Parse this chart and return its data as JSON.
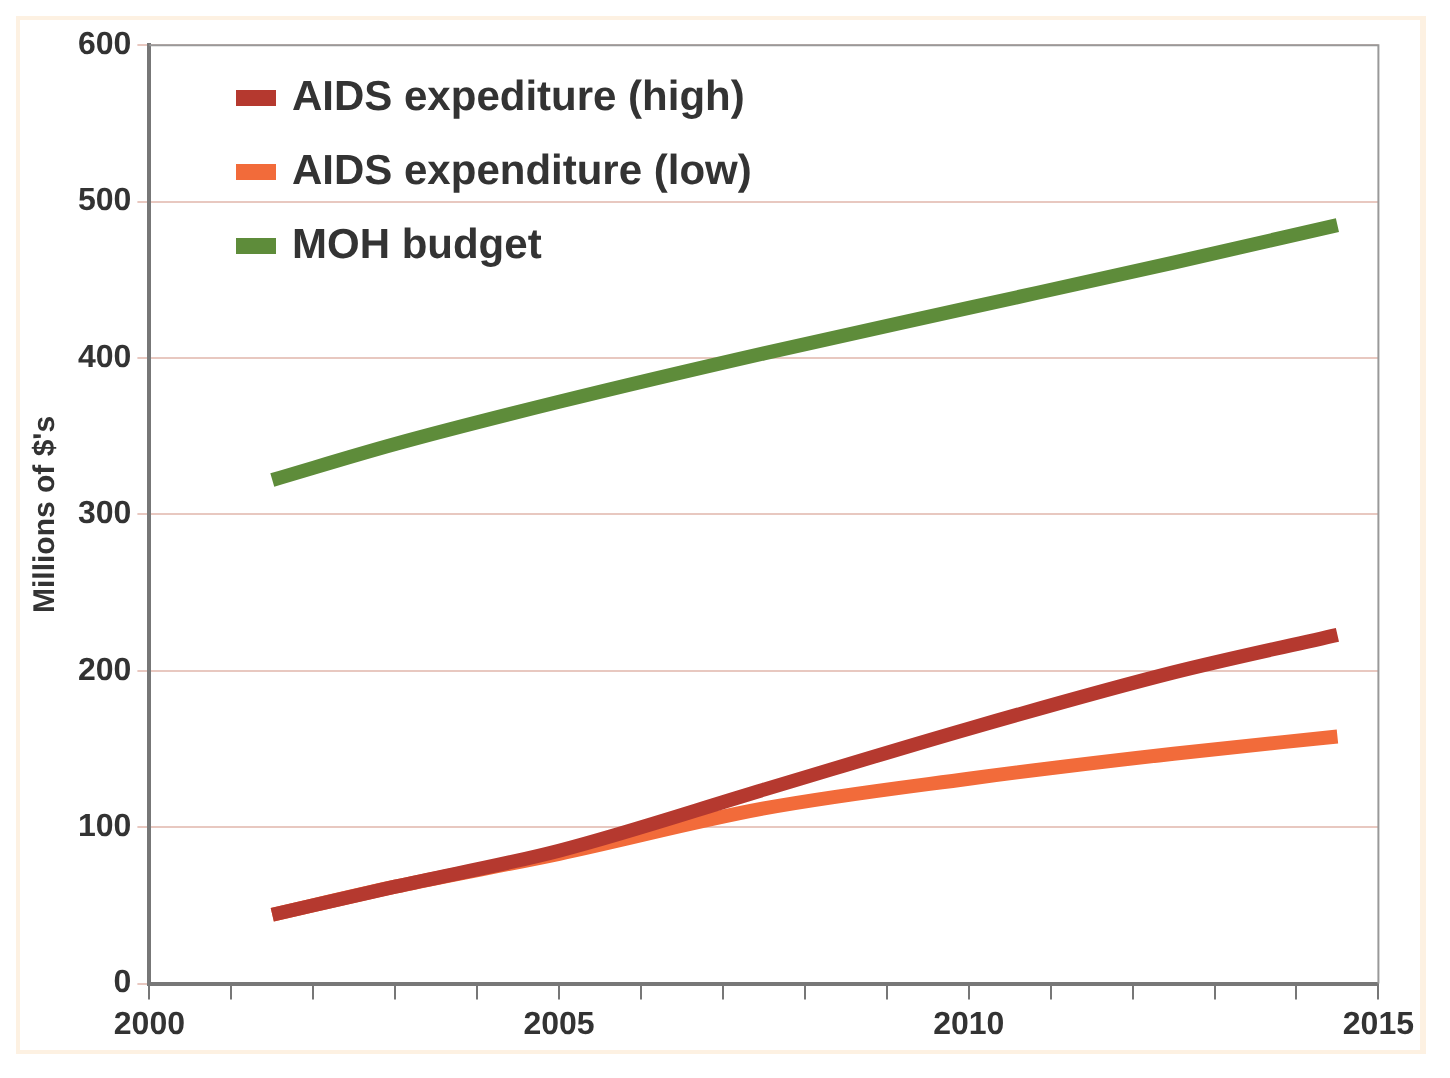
{
  "chart_data": {
    "type": "line",
    "ylabel": "Millions of $'s",
    "xlim": [
      2000,
      2015
    ],
    "xticks": [
      2000,
      {
        "value": 2001,
        "label": null
      },
      {
        "value": 2002,
        "label": null
      },
      {
        "value": 2003,
        "label": null
      },
      {
        "value": 2004,
        "label": null
      },
      2005,
      {
        "value": 2006,
        "label": null
      },
      {
        "value": 2007,
        "label": null
      },
      {
        "value": 2008,
        "label": null
      },
      {
        "value": 2009,
        "label": null
      },
      2010,
      {
        "value": 2011,
        "label": null
      },
      {
        "value": 2012,
        "label": null
      },
      {
        "value": 2013,
        "label": null
      },
      {
        "value": 2014,
        "label": null
      },
      2015
    ],
    "ylim": [
      0,
      600
    ],
    "yticks": [
      0,
      100,
      200,
      300,
      400,
      500,
      600
    ],
    "x": [
      2001.5,
      2003,
      2005,
      2007.5,
      2010,
      2012.5,
      2014.5
    ],
    "series": [
      {
        "name": "AIDS expediture (high)",
        "color": "#b5392f",
        "values": [
          44,
          62,
          85,
          124,
          163,
          199,
          223
        ]
      },
      {
        "name": "AIDS expenditure (low)",
        "color": "#f26b3a",
        "values": [
          44,
          62,
          83,
          112,
          131,
          147,
          158
        ]
      },
      {
        "name": "MOH budget",
        "color": "#5e8c3a",
        "values": [
          322,
          345,
          372,
          403,
          432,
          461,
          485
        ]
      }
    ],
    "grid": "y",
    "legend": "top left",
    "marker": "none",
    "line_style": "solid"
  }
}
